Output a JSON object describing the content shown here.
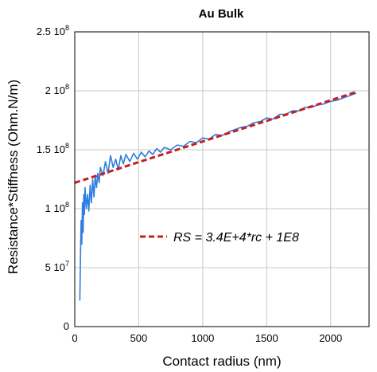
{
  "chart_data": {
    "type": "line",
    "title": "Au Bulk",
    "xlabel": "Contact radius (nm)",
    "ylabel": "Resistance*Stiffness (Ohm.N/m)",
    "xlim": [
      0,
      2300
    ],
    "ylim": [
      0,
      250000000
    ],
    "x_ticks": [
      {
        "value": 0,
        "label": "0"
      },
      {
        "value": 500,
        "label": "500"
      },
      {
        "value": 1000,
        "label": "1000"
      },
      {
        "value": 1500,
        "label": "1500"
      },
      {
        "value": 2000,
        "label": "2000"
      }
    ],
    "y_ticks": [
      {
        "value": 0,
        "label": "0"
      },
      {
        "value": 50000000,
        "label": "5 10",
        "exp": "7"
      },
      {
        "value": 100000000,
        "label": "1 10",
        "exp": "8"
      },
      {
        "value": 150000000,
        "label": "1.5 10",
        "exp": "8"
      },
      {
        "value": 200000000,
        "label": "2 10",
        "exp": "8"
      },
      {
        "value": 250000000,
        "label": "2.5 10",
        "exp": "8"
      }
    ],
    "grid": true,
    "legend_position": "center-right",
    "series": [
      {
        "color": "#2f7de1",
        "x": [
          40,
          45,
          50,
          55,
          60,
          65,
          70,
          75,
          80,
          90,
          100,
          110,
          120,
          130,
          140,
          150,
          160,
          170,
          180,
          190,
          200,
          220,
          240,
          260,
          280,
          300,
          320,
          340,
          360,
          380,
          400,
          430,
          460,
          490,
          520,
          550,
          580,
          610,
          640,
          670,
          700,
          750,
          800,
          850,
          900,
          950,
          1000,
          1050,
          1100,
          1150,
          1200,
          1250,
          1300,
          1350,
          1400,
          1450,
          1500,
          1550,
          1600,
          1650,
          1700,
          1750,
          1800,
          1850,
          1900,
          1950,
          2000,
          2050,
          2100,
          2150,
          2200
        ],
        "values": [
          22000000,
          60000000,
          90000000,
          70000000,
          105000000,
          80000000,
          112000000,
          95000000,
          118000000,
          100000000,
          112000000,
          98000000,
          120000000,
          105000000,
          125000000,
          110000000,
          128000000,
          118000000,
          130000000,
          122000000,
          135000000,
          128000000,
          140000000,
          130000000,
          145000000,
          135000000,
          142000000,
          133000000,
          145000000,
          138000000,
          146000000,
          140000000,
          147000000,
          142000000,
          148000000,
          144000000,
          149000000,
          146000000,
          151000000,
          148000000,
          152000000,
          150000000,
          154000000,
          153000000,
          157000000,
          156000000,
          160000000,
          159000000,
          163000000,
          162000000,
          165000000,
          167000000,
          169000000,
          170000000,
          173000000,
          174000000,
          177000000,
          176000000,
          180000000,
          180000000,
          183000000,
          183000000,
          186000000,
          186000000,
          188000000,
          189000000,
          191000000,
          192000000,
          194000000,
          196000000,
          198000000
        ]
      },
      {
        "name": "RS = 3.4E+4*rc + 1E8",
        "color": "#c81e1e",
        "dash": true,
        "x": [
          0,
          2200
        ],
        "values": [
          122000000,
          199000000
        ]
      }
    ]
  }
}
